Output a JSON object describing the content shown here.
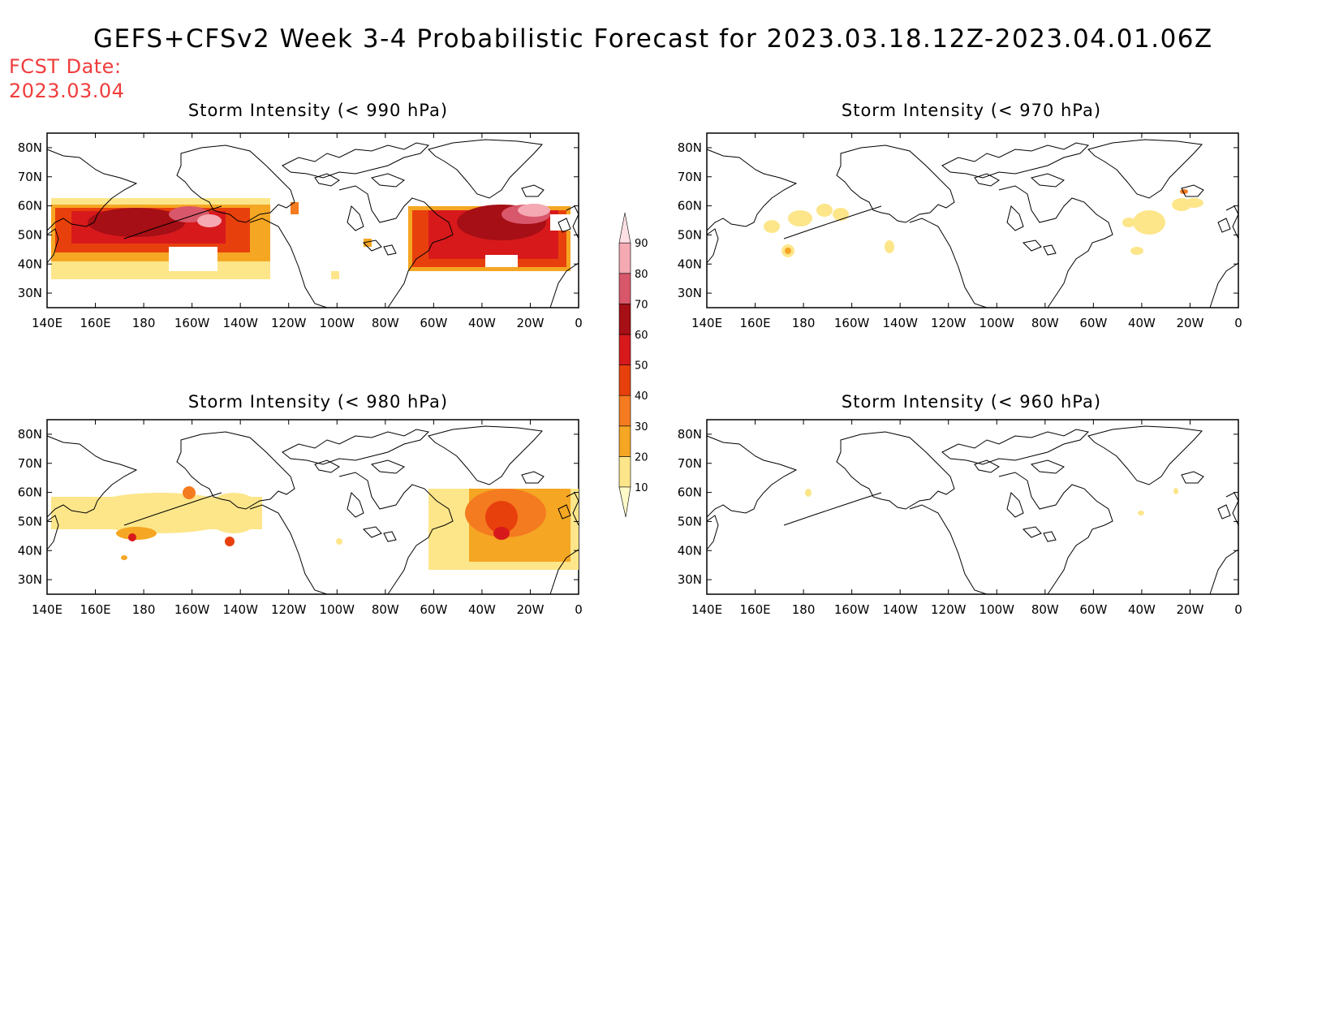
{
  "title": "GEFS+CFSv2 Week 3-4 Probabilistic Forecast for 2023.03.18.12Z-2023.04.01.06Z",
  "fcst_date_label": "FCST Date:",
  "fcst_date_value": "2023.03.04",
  "panels": [
    {
      "id": "p990",
      "title": "Storm Intensity (< 990 hPa)"
    },
    {
      "id": "p970",
      "title": "Storm Intensity (< 970 hPa)"
    },
    {
      "id": "p980",
      "title": "Storm Intensity (< 980 hPa)"
    },
    {
      "id": "p960",
      "title": "Storm Intensity (< 960 hPa)"
    }
  ],
  "axes": {
    "lon_ticks": [
      "140E",
      "160E",
      "180",
      "160W",
      "140W",
      "120W",
      "100W",
      "80W",
      "60W",
      "40W",
      "20W",
      "0"
    ],
    "lat_ticks": [
      "80N",
      "70N",
      "60N",
      "50N",
      "40N",
      "30N"
    ],
    "lon_range_deg_east": [
      140,
      360
    ],
    "lat_range": [
      25,
      85
    ]
  },
  "colorbar": {
    "levels": [
      10,
      20,
      30,
      40,
      50,
      60,
      70,
      80,
      90
    ],
    "labels": [
      "10",
      "20",
      "30",
      "40",
      "50",
      "60",
      "70",
      "80",
      "90"
    ],
    "colors": [
      "#fffbc8",
      "#fde68a",
      "#f5a623",
      "#f47b20",
      "#e8400c",
      "#d7191c",
      "#a50f15",
      "#d9576a",
      "#f4a9b3",
      "#fde0e4"
    ]
  },
  "colors": {
    "fcst_date": "#f03c3c",
    "coast": "#000000"
  }
}
